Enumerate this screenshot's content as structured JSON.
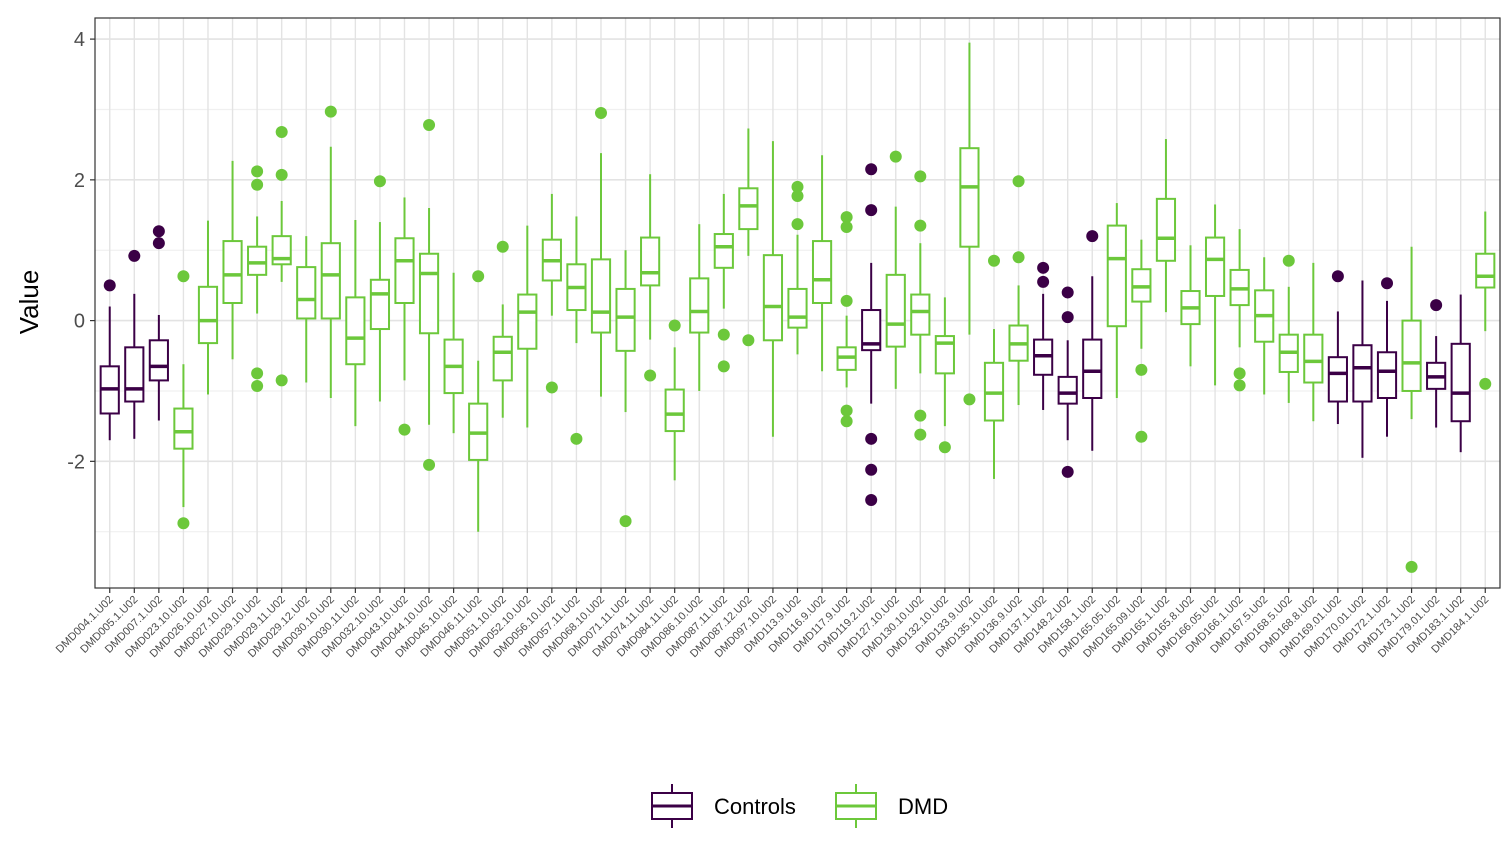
{
  "chart_data": {
    "type": "boxplot",
    "title": "",
    "xlabel": "",
    "ylabel": "Value",
    "ylim": [
      -3.8,
      4.3
    ],
    "yticks": [
      -2,
      0,
      2,
      4
    ],
    "grid": true,
    "legend_position": "bottom",
    "series": [
      {
        "name": "Controls",
        "color": "#3b0046"
      },
      {
        "name": "DMD",
        "color": "#6cc83b"
      }
    ],
    "boxes": [
      {
        "label": "DMD004.1.U02",
        "group": "Controls",
        "whisker_low": -1.7,
        "q1": -1.32,
        "median": -0.97,
        "q3": -0.65,
        "whisker_high": 0.2,
        "outliers": [
          0.5
        ]
      },
      {
        "label": "DMD005.1.U02",
        "group": "Controls",
        "whisker_low": -1.68,
        "q1": -1.15,
        "median": -0.97,
        "q3": -0.38,
        "whisker_high": 0.38,
        "outliers": [
          0.92
        ]
      },
      {
        "label": "DMD007.1.U02",
        "group": "Controls",
        "whisker_low": -1.42,
        "q1": -0.85,
        "median": -0.65,
        "q3": -0.28,
        "whisker_high": 0.08,
        "outliers": [
          1.1,
          1.27
        ]
      },
      {
        "label": "DMD023.10.U02",
        "group": "DMD",
        "whisker_low": -2.65,
        "q1": -1.82,
        "median": -1.58,
        "q3": -1.25,
        "whisker_high": -0.62,
        "outliers": [
          0.63,
          -2.88
        ]
      },
      {
        "label": "DMD026.10.U02",
        "group": "DMD",
        "whisker_low": -1.05,
        "q1": -0.32,
        "median": 0.0,
        "q3": 0.48,
        "whisker_high": 1.42,
        "outliers": []
      },
      {
        "label": "DMD027.10.U02",
        "group": "DMD",
        "whisker_low": -0.55,
        "q1": 0.25,
        "median": 0.65,
        "q3": 1.13,
        "whisker_high": 2.27,
        "outliers": []
      },
      {
        "label": "DMD029.10.U02",
        "group": "DMD",
        "whisker_low": 0.1,
        "q1": 0.65,
        "median": 0.82,
        "q3": 1.05,
        "whisker_high": 1.48,
        "outliers": [
          2.12,
          1.93,
          -0.75,
          -0.93
        ]
      },
      {
        "label": "DMD029.11.U02",
        "group": "DMD",
        "whisker_low": 0.55,
        "q1": 0.8,
        "median": 0.88,
        "q3": 1.2,
        "whisker_high": 1.7,
        "outliers": [
          2.68,
          2.07,
          -0.85
        ]
      },
      {
        "label": "DMD029.12.U02",
        "group": "DMD",
        "whisker_low": -0.88,
        "q1": 0.03,
        "median": 0.3,
        "q3": 0.76,
        "whisker_high": 1.2,
        "outliers": []
      },
      {
        "label": "DMD030.10.U02",
        "group": "DMD",
        "whisker_low": -1.1,
        "q1": 0.03,
        "median": 0.65,
        "q3": 1.1,
        "whisker_high": 2.47,
        "outliers": [
          2.97
        ]
      },
      {
        "label": "DMD030.11.U02",
        "group": "DMD",
        "whisker_low": -1.5,
        "q1": -0.62,
        "median": -0.25,
        "q3": 0.33,
        "whisker_high": 1.43,
        "outliers": []
      },
      {
        "label": "DMD032.10.U02",
        "group": "DMD",
        "whisker_low": -1.15,
        "q1": -0.12,
        "median": 0.38,
        "q3": 0.58,
        "whisker_high": 1.4,
        "outliers": [
          1.98
        ]
      },
      {
        "label": "DMD043.10.U02",
        "group": "DMD",
        "whisker_low": -0.85,
        "q1": 0.25,
        "median": 0.85,
        "q3": 1.17,
        "whisker_high": 1.75,
        "outliers": [
          -1.55
        ]
      },
      {
        "label": "DMD044.10.U02",
        "group": "DMD",
        "whisker_low": -1.48,
        "q1": -0.18,
        "median": 0.67,
        "q3": 0.95,
        "whisker_high": 1.6,
        "outliers": [
          2.78,
          -2.05
        ]
      },
      {
        "label": "DMD045.10.U02",
        "group": "DMD",
        "whisker_low": -1.6,
        "q1": -1.03,
        "median": -0.65,
        "q3": -0.27,
        "whisker_high": 0.68,
        "outliers": []
      },
      {
        "label": "DMD046.11.U02",
        "group": "DMD",
        "whisker_low": -3.0,
        "q1": -1.98,
        "median": -1.6,
        "q3": -1.18,
        "whisker_high": -0.57,
        "outliers": [
          0.63
        ]
      },
      {
        "label": "DMD051.10.U02",
        "group": "DMD",
        "whisker_low": -1.38,
        "q1": -0.85,
        "median": -0.45,
        "q3": -0.23,
        "whisker_high": 0.23,
        "outliers": [
          1.05
        ]
      },
      {
        "label": "DMD052.10.U02",
        "group": "DMD",
        "whisker_low": -1.52,
        "q1": -0.4,
        "median": 0.12,
        "q3": 0.37,
        "whisker_high": 1.35,
        "outliers": []
      },
      {
        "label": "DMD056.10.U02",
        "group": "DMD",
        "whisker_low": 0.07,
        "q1": 0.57,
        "median": 0.85,
        "q3": 1.15,
        "whisker_high": 1.8,
        "outliers": [
          -0.95
        ]
      },
      {
        "label": "DMD057.11.U02",
        "group": "DMD",
        "whisker_low": -0.32,
        "q1": 0.15,
        "median": 0.47,
        "q3": 0.8,
        "whisker_high": 1.48,
        "outliers": [
          -1.68
        ]
      },
      {
        "label": "DMD068.10.U02",
        "group": "DMD",
        "whisker_low": -1.08,
        "q1": -0.17,
        "median": 0.12,
        "q3": 0.87,
        "whisker_high": 2.38,
        "outliers": [
          2.95
        ]
      },
      {
        "label": "DMD071.11.U02",
        "group": "DMD",
        "whisker_low": -1.3,
        "q1": -0.43,
        "median": 0.05,
        "q3": 0.45,
        "whisker_high": 1.0,
        "outliers": [
          -2.85
        ]
      },
      {
        "label": "DMD074.11.U02",
        "group": "DMD",
        "whisker_low": -0.27,
        "q1": 0.5,
        "median": 0.68,
        "q3": 1.18,
        "whisker_high": 2.08,
        "outliers": [
          -0.78
        ]
      },
      {
        "label": "DMD084.11.U02",
        "group": "DMD",
        "whisker_low": -2.27,
        "q1": -1.57,
        "median": -1.33,
        "q3": -0.98,
        "whisker_high": -0.38,
        "outliers": [
          -0.07
        ]
      },
      {
        "label": "DMD086.10.U02",
        "group": "DMD",
        "whisker_low": -1.0,
        "q1": -0.17,
        "median": 0.13,
        "q3": 0.6,
        "whisker_high": 1.37,
        "outliers": []
      },
      {
        "label": "DMD087.11.U02",
        "group": "DMD",
        "whisker_low": 0.17,
        "q1": 0.75,
        "median": 1.05,
        "q3": 1.23,
        "whisker_high": 1.8,
        "outliers": [
          -0.2,
          -0.65
        ]
      },
      {
        "label": "DMD087.12.U02",
        "group": "DMD",
        "whisker_low": 0.92,
        "q1": 1.3,
        "median": 1.63,
        "q3": 1.88,
        "whisker_high": 2.73,
        "outliers": [
          -0.28
        ]
      },
      {
        "label": "DMD097.10.U02",
        "group": "DMD",
        "whisker_low": -1.65,
        "q1": -0.28,
        "median": 0.2,
        "q3": 0.93,
        "whisker_high": 2.55,
        "outliers": []
      },
      {
        "label": "DMD113.9.U02",
        "group": "DMD",
        "whisker_low": -0.48,
        "q1": -0.1,
        "median": 0.05,
        "q3": 0.45,
        "whisker_high": 1.22,
        "outliers": [
          1.9,
          1.77,
          1.37
        ]
      },
      {
        "label": "DMD116.9.U02",
        "group": "DMD",
        "whisker_low": -0.72,
        "q1": 0.25,
        "median": 0.58,
        "q3": 1.13,
        "whisker_high": 2.35,
        "outliers": []
      },
      {
        "label": "DMD117.9.U02",
        "group": "DMD",
        "whisker_low": -0.95,
        "q1": -0.7,
        "median": -0.52,
        "q3": -0.38,
        "whisker_high": 0.07,
        "outliers": [
          1.47,
          1.33,
          0.28,
          -1.28,
          -1.43
        ]
      },
      {
        "label": "DMD119.2.U02",
        "group": "Controls",
        "whisker_low": -1.18,
        "q1": -0.42,
        "median": -0.33,
        "q3": 0.15,
        "whisker_high": 0.82,
        "outliers": [
          2.15,
          1.57,
          -1.68,
          -2.12,
          -2.55
        ]
      },
      {
        "label": "DMD127.10.U02",
        "group": "DMD",
        "whisker_low": -0.97,
        "q1": -0.37,
        "median": -0.05,
        "q3": 0.65,
        "whisker_high": 1.62,
        "outliers": [
          2.33
        ]
      },
      {
        "label": "DMD130.10.U02",
        "group": "DMD",
        "whisker_low": -0.75,
        "q1": -0.2,
        "median": 0.13,
        "q3": 0.37,
        "whisker_high": 1.1,
        "outliers": [
          2.05,
          1.35,
          -1.35,
          -1.62
        ]
      },
      {
        "label": "DMD132.10.U02",
        "group": "DMD",
        "whisker_low": -1.5,
        "q1": -0.75,
        "median": -0.32,
        "q3": -0.22,
        "whisker_high": 0.33,
        "outliers": [
          -1.8
        ]
      },
      {
        "label": "DMD133.9.U02",
        "group": "DMD",
        "whisker_low": -0.2,
        "q1": 1.05,
        "median": 1.9,
        "q3": 2.45,
        "whisker_high": 3.95,
        "outliers": [
          -1.12
        ]
      },
      {
        "label": "DMD135.10.U02",
        "group": "DMD",
        "whisker_low": -2.25,
        "q1": -1.42,
        "median": -1.03,
        "q3": -0.6,
        "whisker_high": -0.12,
        "outliers": [
          0.85
        ]
      },
      {
        "label": "DMD136.9.U02",
        "group": "DMD",
        "whisker_low": -1.2,
        "q1": -0.57,
        "median": -0.33,
        "q3": -0.07,
        "whisker_high": 0.5,
        "outliers": [
          1.98,
          0.9
        ]
      },
      {
        "label": "DMD137.1.U02",
        "group": "Controls",
        "whisker_low": -1.27,
        "q1": -0.77,
        "median": -0.5,
        "q3": -0.27,
        "whisker_high": 0.38,
        "outliers": [
          0.75,
          0.55
        ]
      },
      {
        "label": "DMD148.2.U02",
        "group": "Controls",
        "whisker_low": -1.7,
        "q1": -1.18,
        "median": -1.03,
        "q3": -0.8,
        "whisker_high": -0.28,
        "outliers": [
          0.4,
          0.05,
          -2.15
        ]
      },
      {
        "label": "DMD158.1.U02",
        "group": "Controls",
        "whisker_low": -1.85,
        "q1": -1.1,
        "median": -0.72,
        "q3": -0.27,
        "whisker_high": 0.63,
        "outliers": [
          1.2
        ]
      },
      {
        "label": "DMD165.05.U02",
        "group": "DMD",
        "whisker_low": -1.1,
        "q1": -0.08,
        "median": 0.88,
        "q3": 1.35,
        "whisker_high": 1.67,
        "outliers": []
      },
      {
        "label": "DMD165.09.U02",
        "group": "DMD",
        "whisker_low": -0.4,
        "q1": 0.27,
        "median": 0.48,
        "q3": 0.73,
        "whisker_high": 1.15,
        "outliers": [
          -0.7,
          -1.65
        ]
      },
      {
        "label": "DMD165.1.U02",
        "group": "DMD",
        "whisker_low": 0.12,
        "q1": 0.85,
        "median": 1.17,
        "q3": 1.73,
        "whisker_high": 2.58,
        "outliers": []
      },
      {
        "label": "DMD165.8.U02",
        "group": "DMD",
        "whisker_low": -0.65,
        "q1": -0.05,
        "median": 0.18,
        "q3": 0.42,
        "whisker_high": 1.07,
        "outliers": []
      },
      {
        "label": "DMD166.05.U02",
        "group": "DMD",
        "whisker_low": -0.92,
        "q1": 0.35,
        "median": 0.87,
        "q3": 1.18,
        "whisker_high": 1.65,
        "outliers": []
      },
      {
        "label": "DMD166.1.U02",
        "group": "DMD",
        "whisker_low": -0.38,
        "q1": 0.22,
        "median": 0.45,
        "q3": 0.72,
        "whisker_high": 1.3,
        "outliers": [
          -0.75,
          -0.92
        ]
      },
      {
        "label": "DMD167.5.U02",
        "group": "DMD",
        "whisker_low": -1.05,
        "q1": -0.3,
        "median": 0.07,
        "q3": 0.43,
        "whisker_high": 0.9,
        "outliers": []
      },
      {
        "label": "DMD168.5.U02",
        "group": "DMD",
        "whisker_low": -1.17,
        "q1": -0.73,
        "median": -0.45,
        "q3": -0.2,
        "whisker_high": 0.48,
        "outliers": [
          0.85
        ]
      },
      {
        "label": "DMD168.8.U02",
        "group": "DMD",
        "whisker_low": -1.43,
        "q1": -0.88,
        "median": -0.58,
        "q3": -0.2,
        "whisker_high": 0.82,
        "outliers": []
      },
      {
        "label": "DMD169.01.U02",
        "group": "Controls",
        "whisker_low": -1.47,
        "q1": -1.15,
        "median": -0.75,
        "q3": -0.52,
        "whisker_high": 0.13,
        "outliers": [
          0.63
        ]
      },
      {
        "label": "DMD170.01.U02",
        "group": "Controls",
        "whisker_low": -1.95,
        "q1": -1.15,
        "median": -0.67,
        "q3": -0.35,
        "whisker_high": 0.57,
        "outliers": []
      },
      {
        "label": "DMD172.1.U02",
        "group": "Controls",
        "whisker_low": -1.65,
        "q1": -1.1,
        "median": -0.72,
        "q3": -0.45,
        "whisker_high": 0.28,
        "outliers": [
          0.53
        ]
      },
      {
        "label": "DMD173.1.U02",
        "group": "DMD",
        "whisker_low": -1.4,
        "q1": -1.0,
        "median": -0.6,
        "q3": 0.0,
        "whisker_high": 1.05,
        "outliers": [
          -3.5
        ]
      },
      {
        "label": "DMD179.01.U02",
        "group": "Controls",
        "whisker_low": -1.52,
        "q1": -0.97,
        "median": -0.8,
        "q3": -0.6,
        "whisker_high": -0.22,
        "outliers": [
          0.22
        ]
      },
      {
        "label": "DMD183.1.U02",
        "group": "Controls",
        "whisker_low": -1.87,
        "q1": -1.43,
        "median": -1.03,
        "q3": -0.33,
        "whisker_high": 0.37,
        "outliers": []
      },
      {
        "label": "DMD184.1.U02",
        "group": "DMD",
        "whisker_low": -0.15,
        "q1": 0.47,
        "median": 0.63,
        "q3": 0.95,
        "whisker_high": 1.55,
        "outliers": [
          -0.9
        ]
      }
    ]
  }
}
